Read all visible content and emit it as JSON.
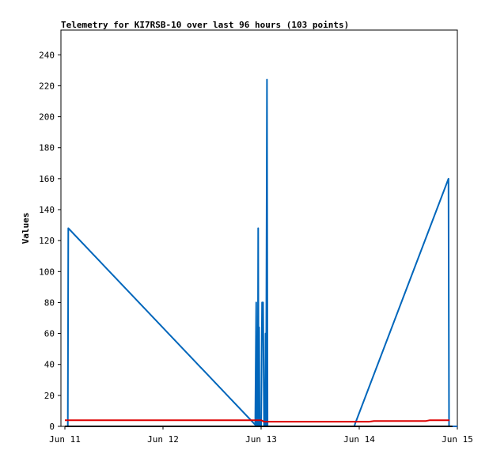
{
  "chart_data": {
    "type": "line",
    "title": "Telemetry for KI7RSB-10 over last 96 hours (103 points)",
    "xlabel": "",
    "ylabel": "Values",
    "x_ticks": [
      "Jun 11",
      "Jun 12",
      "Jun 13",
      "Jun 14",
      "Jun 15"
    ],
    "y_ticks": [
      0,
      20,
      40,
      60,
      80,
      100,
      120,
      140,
      160,
      180,
      200,
      220,
      240
    ],
    "xlim": [
      0,
      4
    ],
    "ylim": [
      0,
      256
    ],
    "grid": false,
    "legend": "none",
    "series": [
      {
        "color": "#0066bb",
        "points": [
          [
            0.0,
            0
          ],
          [
            0.03,
            0
          ],
          [
            0.035,
            128
          ],
          [
            1.94,
            1
          ],
          [
            1.95,
            80
          ],
          [
            1.955,
            0
          ],
          [
            1.96,
            16
          ],
          [
            1.965,
            0
          ],
          [
            1.97,
            128
          ],
          [
            1.975,
            0
          ],
          [
            1.98,
            64
          ],
          [
            1.985,
            0
          ],
          [
            1.99,
            0
          ],
          [
            2.0,
            0
          ],
          [
            2.01,
            80
          ],
          [
            2.02,
            80
          ],
          [
            2.03,
            0
          ],
          [
            2.04,
            0
          ],
          [
            2.045,
            60
          ],
          [
            2.05,
            0
          ],
          [
            2.06,
            224
          ],
          [
            2.065,
            0
          ],
          [
            2.07,
            0
          ],
          [
            2.95,
            0
          ],
          [
            2.96,
            2
          ],
          [
            3.91,
            160
          ],
          [
            3.915,
            0
          ],
          [
            4.0,
            0
          ]
        ]
      },
      {
        "color": "#dd0000",
        "points": [
          [
            0.0,
            4
          ],
          [
            2.0,
            4
          ],
          [
            2.03,
            3
          ],
          [
            3.1,
            3
          ],
          [
            3.15,
            3.5
          ],
          [
            3.68,
            3.5
          ],
          [
            3.72,
            4
          ],
          [
            3.92,
            4
          ]
        ]
      },
      {
        "color": "#000000",
        "points": [
          [
            0.0,
            0
          ],
          [
            3.95,
            0
          ]
        ]
      }
    ]
  }
}
